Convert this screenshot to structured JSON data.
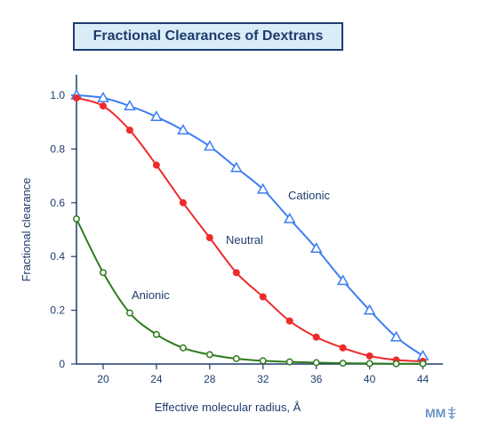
{
  "chart_data": {
    "type": "line",
    "title": "Fractional Clearances of Dextrans",
    "xlabel": "Effective molecular radius, Å",
    "ylabel": "Fractional clearance",
    "xlim": [
      18,
      44.5
    ],
    "ylim": [
      0,
      1.0
    ],
    "xticks": [
      20,
      24,
      28,
      32,
      36,
      40,
      44
    ],
    "yticks": [
      "0",
      "0.2",
      "0.4",
      "0.6",
      "0.8",
      "1.0"
    ],
    "grid": false,
    "series": [
      {
        "name": "Cationic",
        "marker": "open-triangle",
        "color": "#3d7ef0",
        "x": [
          18,
          20,
          22,
          24,
          26,
          28,
          30,
          32,
          34,
          36,
          38,
          40,
          42,
          44
        ],
        "y": [
          1.0,
          0.99,
          0.96,
          0.92,
          0.87,
          0.81,
          0.73,
          0.65,
          0.54,
          0.43,
          0.31,
          0.2,
          0.1,
          0.03
        ]
      },
      {
        "name": "Neutral",
        "marker": "filled-circle",
        "color": "#ee2b2b",
        "x": [
          18,
          20,
          22,
          24,
          26,
          28,
          30,
          32,
          34,
          36,
          38,
          40,
          42,
          44
        ],
        "y": [
          0.99,
          0.96,
          0.87,
          0.74,
          0.6,
          0.47,
          0.34,
          0.25,
          0.16,
          0.1,
          0.06,
          0.03,
          0.015,
          0.01
        ]
      },
      {
        "name": "Anionic",
        "marker": "open-circle",
        "color": "#2f7a1f",
        "x": [
          18,
          20,
          22,
          24,
          26,
          28,
          30,
          32,
          34,
          36,
          38,
          40,
          42,
          44
        ],
        "y": [
          0.54,
          0.34,
          0.19,
          0.11,
          0.06,
          0.035,
          0.02,
          0.012,
          0.008,
          0.005,
          0.003,
          0.002,
          0.001,
          0.001
        ]
      }
    ]
  },
  "logo": {
    "text": "MM"
  }
}
